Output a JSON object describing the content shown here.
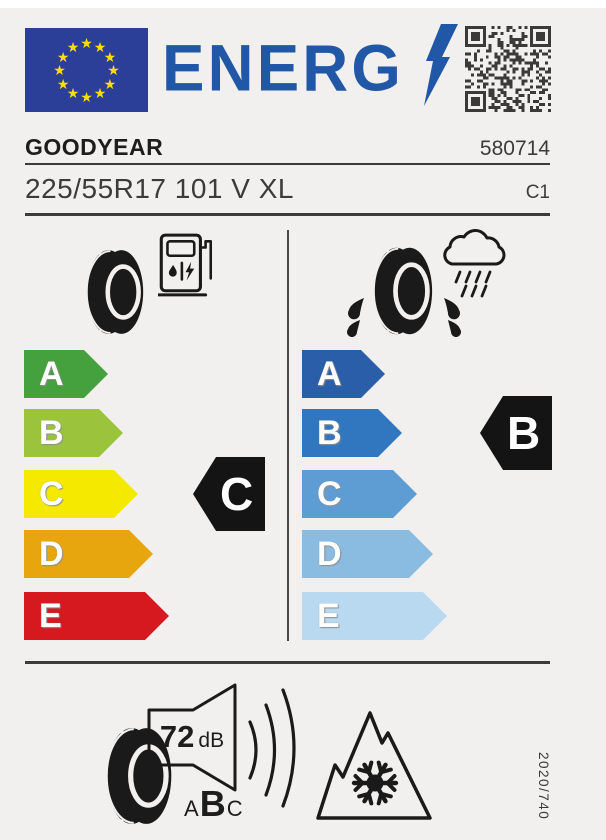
{
  "header": {
    "logo_text": "ENERG",
    "eu_flag_star_count": 12
  },
  "product": {
    "brand": "GOODYEAR",
    "article_number": "580714",
    "tire_designation": "225/55R17 101 V XL",
    "vehicle_class": "C1"
  },
  "fuel_efficiency": {
    "selected": "C",
    "classes": [
      {
        "label": "A",
        "color": "#44a13e"
      },
      {
        "label": "B",
        "color": "#9bc43c"
      },
      {
        "label": "C",
        "color": "#f5e900"
      },
      {
        "label": "D",
        "color": "#e7a60e"
      },
      {
        "label": "E",
        "color": "#d5191e"
      }
    ]
  },
  "wet_grip": {
    "selected": "B",
    "classes": [
      {
        "label": "A",
        "color": "#2b5ea8"
      },
      {
        "label": "B",
        "color": "#3077bf"
      },
      {
        "label": "C",
        "color": "#5e9dd3"
      },
      {
        "label": "D",
        "color": "#8abbe0"
      },
      {
        "label": "E",
        "color": "#b9d9f0"
      }
    ]
  },
  "noise": {
    "value": "72",
    "unit": "dB",
    "class_a": "A",
    "class_b": "B",
    "class_c": "C"
  },
  "regulation": "2020/740"
}
